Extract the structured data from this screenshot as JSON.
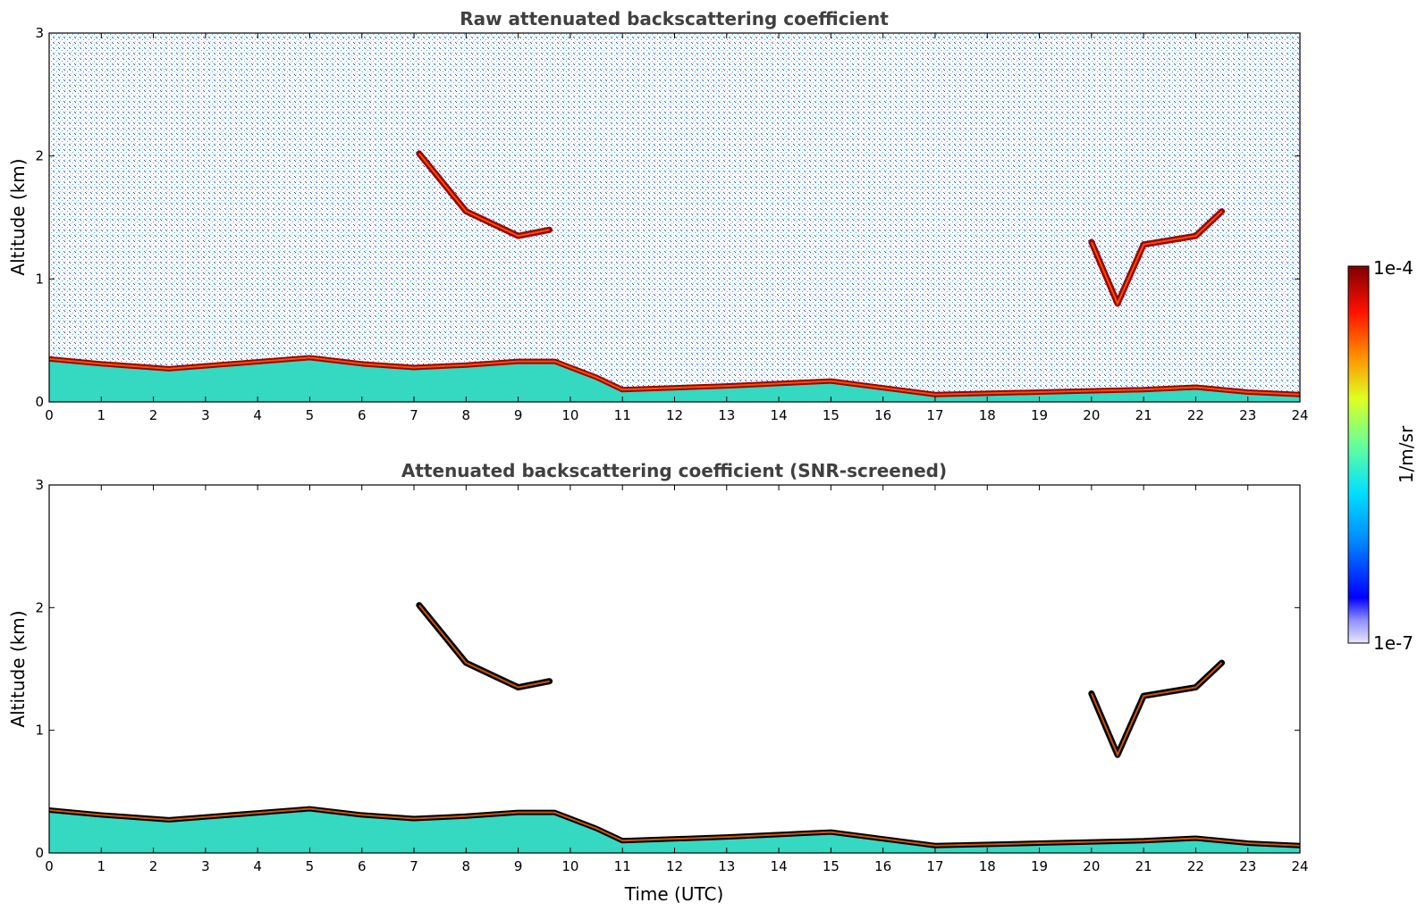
{
  "chart_data": [
    {
      "type": "heatmap",
      "title": "Raw attenuated backscattering coefficient",
      "xlabel": "",
      "ylabel": "Altitude (km)",
      "xlim": [
        0,
        24
      ],
      "ylim": [
        0,
        3
      ],
      "xticks": [
        "0",
        "1",
        "2",
        "3",
        "4",
        "5",
        "6",
        "7",
        "8",
        "9",
        "10",
        "11",
        "12",
        "13",
        "14",
        "15",
        "16",
        "17",
        "18",
        "19",
        "20",
        "21",
        "22",
        "23",
        "24"
      ],
      "yticks": [
        "0",
        "1",
        "2",
        "3"
      ],
      "screened": false,
      "layers": [
        {
          "kind": "boundary_layer_top",
          "points": [
            [
              0,
              0.35
            ],
            [
              1,
              0.31
            ],
            [
              2.3,
              0.27
            ],
            [
              5,
              0.36
            ],
            [
              6,
              0.31
            ],
            [
              7,
              0.28
            ],
            [
              8,
              0.3
            ],
            [
              9,
              0.33
            ],
            [
              9.7,
              0.33
            ],
            [
              10.5,
              0.2
            ],
            [
              11,
              0.1
            ],
            [
              13,
              0.13
            ],
            [
              15,
              0.17
            ],
            [
              17,
              0.06
            ],
            [
              19,
              0.08
            ],
            [
              21,
              0.1
            ],
            [
              22,
              0.12
            ],
            [
              23,
              0.08
            ],
            [
              24,
              0.06
            ]
          ]
        },
        {
          "kind": "cloud",
          "points": [
            [
              7.1,
              2.02
            ],
            [
              8,
              1.55
            ],
            [
              9,
              1.35
            ],
            [
              9.6,
              1.4
            ]
          ]
        },
        {
          "kind": "cloud",
          "points": [
            [
              20,
              1.3
            ],
            [
              20.5,
              0.8
            ],
            [
              21,
              1.28
            ],
            [
              22,
              1.35
            ],
            [
              22.5,
              1.55
            ]
          ]
        }
      ]
    },
    {
      "type": "heatmap",
      "title": "Attenuated backscattering coefficient (SNR-screened)",
      "xlabel": "Time (UTC)",
      "ylabel": "Altitude (km)",
      "xlim": [
        0,
        24
      ],
      "ylim": [
        0,
        3
      ],
      "xticks": [
        "0",
        "1",
        "2",
        "3",
        "4",
        "5",
        "6",
        "7",
        "8",
        "9",
        "10",
        "11",
        "12",
        "13",
        "14",
        "15",
        "16",
        "17",
        "18",
        "19",
        "20",
        "21",
        "22",
        "23",
        "24"
      ],
      "yticks": [
        "0",
        "1",
        "2",
        "3"
      ],
      "screened": true,
      "layers": [
        {
          "kind": "boundary_layer_top",
          "points": [
            [
              0,
              0.35
            ],
            [
              1,
              0.31
            ],
            [
              2.3,
              0.27
            ],
            [
              5,
              0.36
            ],
            [
              6,
              0.31
            ],
            [
              7,
              0.28
            ],
            [
              8,
              0.3
            ],
            [
              9,
              0.33
            ],
            [
              9.7,
              0.33
            ],
            [
              10.5,
              0.2
            ],
            [
              11,
              0.1
            ],
            [
              13,
              0.13
            ],
            [
              15,
              0.17
            ],
            [
              17,
              0.06
            ],
            [
              19,
              0.08
            ],
            [
              21,
              0.1
            ],
            [
              22,
              0.12
            ],
            [
              23,
              0.08
            ],
            [
              24,
              0.06
            ]
          ]
        },
        {
          "kind": "cloud",
          "points": [
            [
              7.1,
              2.02
            ],
            [
              8,
              1.55
            ],
            [
              9,
              1.35
            ],
            [
              9.6,
              1.4
            ]
          ]
        },
        {
          "kind": "cloud",
          "points": [
            [
              20,
              1.3
            ],
            [
              20.5,
              0.8
            ],
            [
              21,
              1.28
            ],
            [
              22,
              1.35
            ],
            [
              22.5,
              1.55
            ]
          ]
        }
      ]
    }
  ],
  "colorbar": {
    "label": "1/m/sr",
    "max_label": "1e-4",
    "min_label": "1e-7",
    "scale": "log",
    "range": [
      1e-07,
      0.0001
    ],
    "colormap": [
      "#e8e8f8",
      "#0000ff",
      "#0090ff",
      "#00e0ff",
      "#60ffa0",
      "#e0ff20",
      "#ff9000",
      "#ff1000",
      "#800000"
    ]
  }
}
